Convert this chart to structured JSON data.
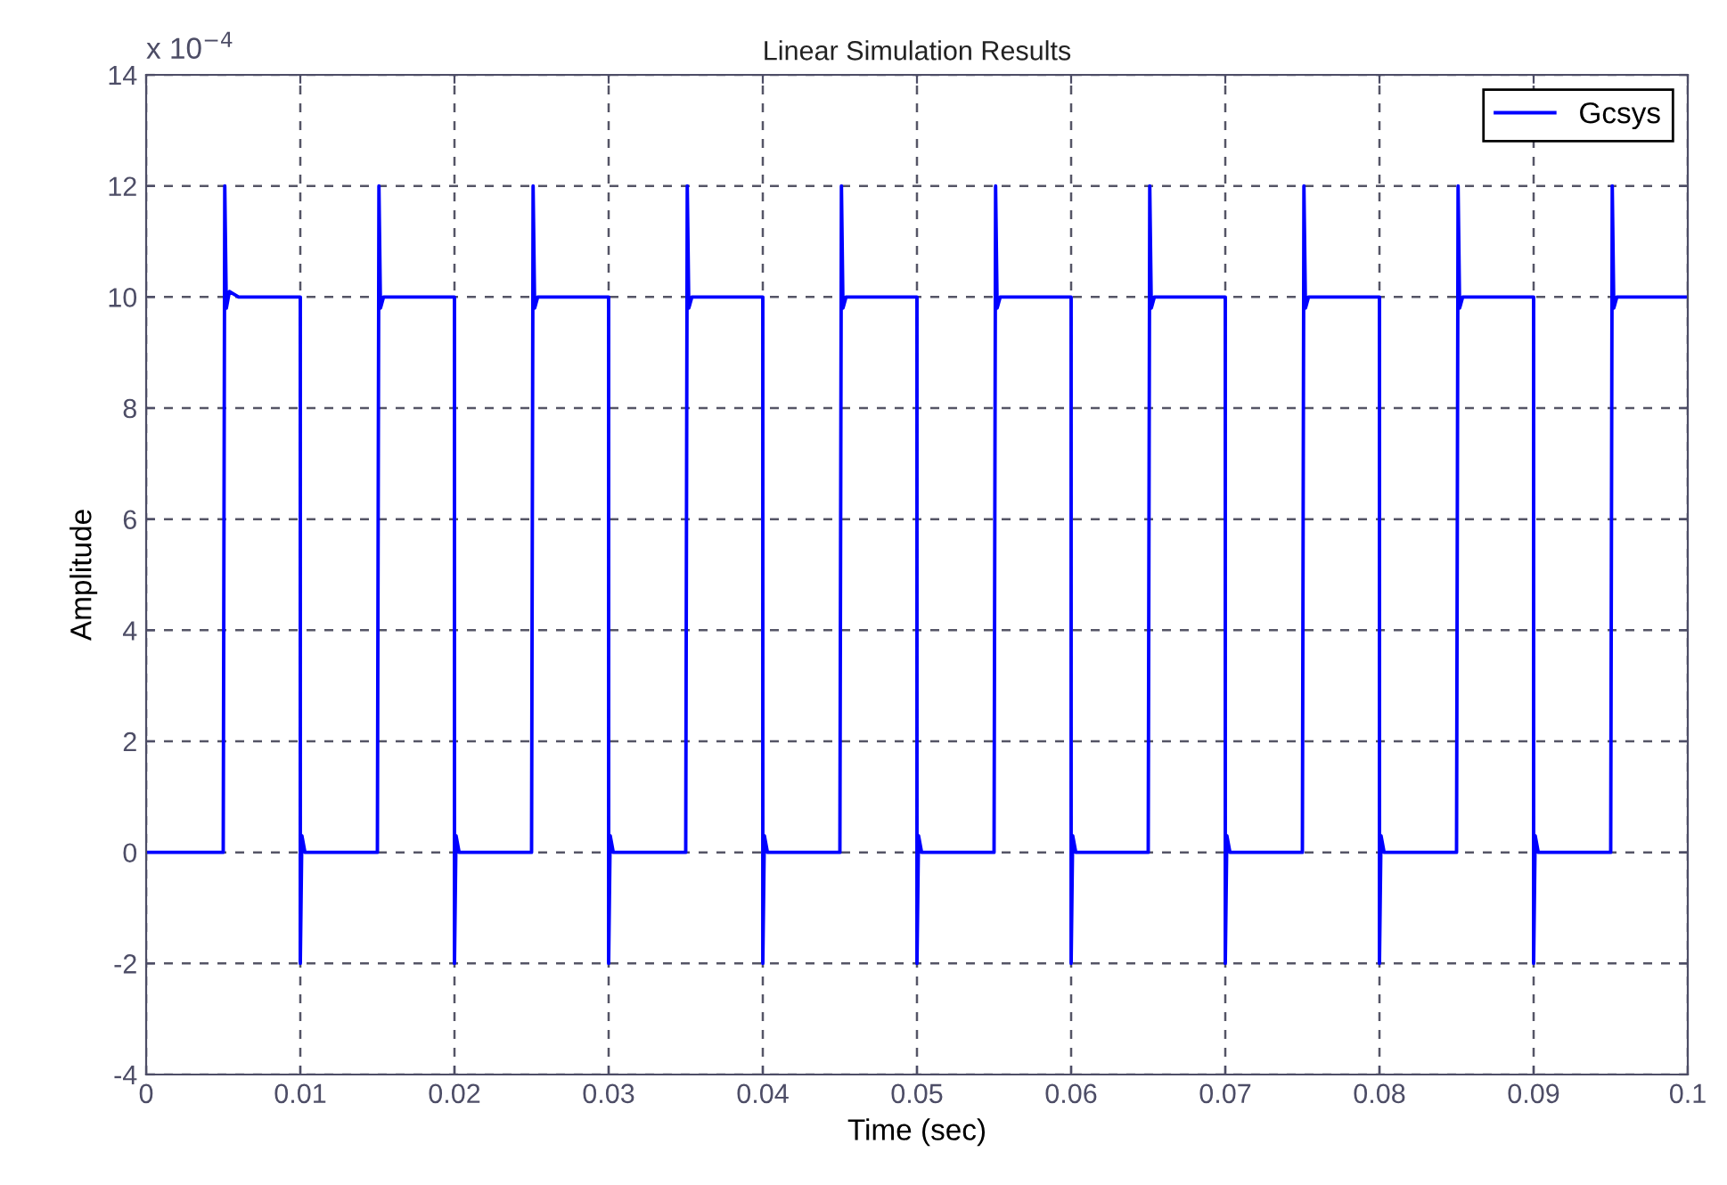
{
  "chart_data": {
    "type": "line",
    "title": "Linear Simulation Results",
    "xlabel": "Time (sec)",
    "ylabel": "Amplitude",
    "annotations": [
      "x 10$^{−4}$"
    ],
    "series": [
      {
        "name": "Gcsys",
        "color": "#0000ff",
        "x": [
          0,
          0.005,
          0.0051,
          0.0052,
          0.0054,
          0.006,
          0.01,
          0.01,
          0.0101,
          0.0103,
          0.015,
          0.0151,
          0.0152,
          0.0154,
          0.02,
          0.02,
          0.0201,
          0.0203,
          0.025,
          0.0251,
          0.0252,
          0.0254,
          0.03,
          0.03,
          0.0301,
          0.0303,
          0.035,
          0.0351,
          0.0352,
          0.0354,
          0.04,
          0.04,
          0.0401,
          0.0403,
          0.045,
          0.0451,
          0.0452,
          0.0454,
          0.05,
          0.05,
          0.0501,
          0.0503,
          0.055,
          0.0551,
          0.0552,
          0.0554,
          0.06,
          0.06,
          0.0601,
          0.0603,
          0.065,
          0.0651,
          0.0652,
          0.0654,
          0.07,
          0.07,
          0.0701,
          0.0703,
          0.075,
          0.0751,
          0.0752,
          0.0754,
          0.08,
          0.08,
          0.0801,
          0.0803,
          0.085,
          0.0851,
          0.0852,
          0.0854,
          0.09,
          0.09,
          0.0901,
          0.0903,
          0.095,
          0.0951,
          0.0952,
          0.0954,
          0.1
        ],
        "values": [
          0,
          0,
          12,
          9.8,
          10.1,
          10,
          10,
          -2,
          0.3,
          0,
          0,
          12,
          9.8,
          10,
          10,
          -2,
          0.3,
          0,
          0,
          12,
          9.8,
          10,
          10,
          -2,
          0.3,
          0,
          0,
          12,
          9.8,
          10,
          10,
          -2,
          0.3,
          0,
          0,
          12,
          9.8,
          10,
          10,
          -2,
          0.3,
          0,
          0,
          12,
          9.8,
          10,
          10,
          -2,
          0.3,
          0,
          0,
          12,
          9.8,
          10,
          10,
          -2,
          0.3,
          0,
          0,
          12,
          9.8,
          10,
          10,
          -2,
          0.3,
          0,
          0,
          12,
          9.8,
          10,
          10,
          -2,
          0.3,
          0,
          0,
          12,
          9.8,
          10,
          10
        ]
      }
    ],
    "xlim": [
      0,
      0.1
    ],
    "xticks": [
      0,
      0.01,
      0.02,
      0.03,
      0.04,
      0.05,
      0.06,
      0.07,
      0.08,
      0.09,
      0.1
    ],
    "ylim": [
      -4,
      14
    ],
    "yticks": [
      -4,
      -2,
      0,
      2,
      4,
      6,
      8,
      10,
      12,
      14
    ],
    "grid": true,
    "legend": "top right",
    "marker": "none",
    "line_style": "solid"
  }
}
